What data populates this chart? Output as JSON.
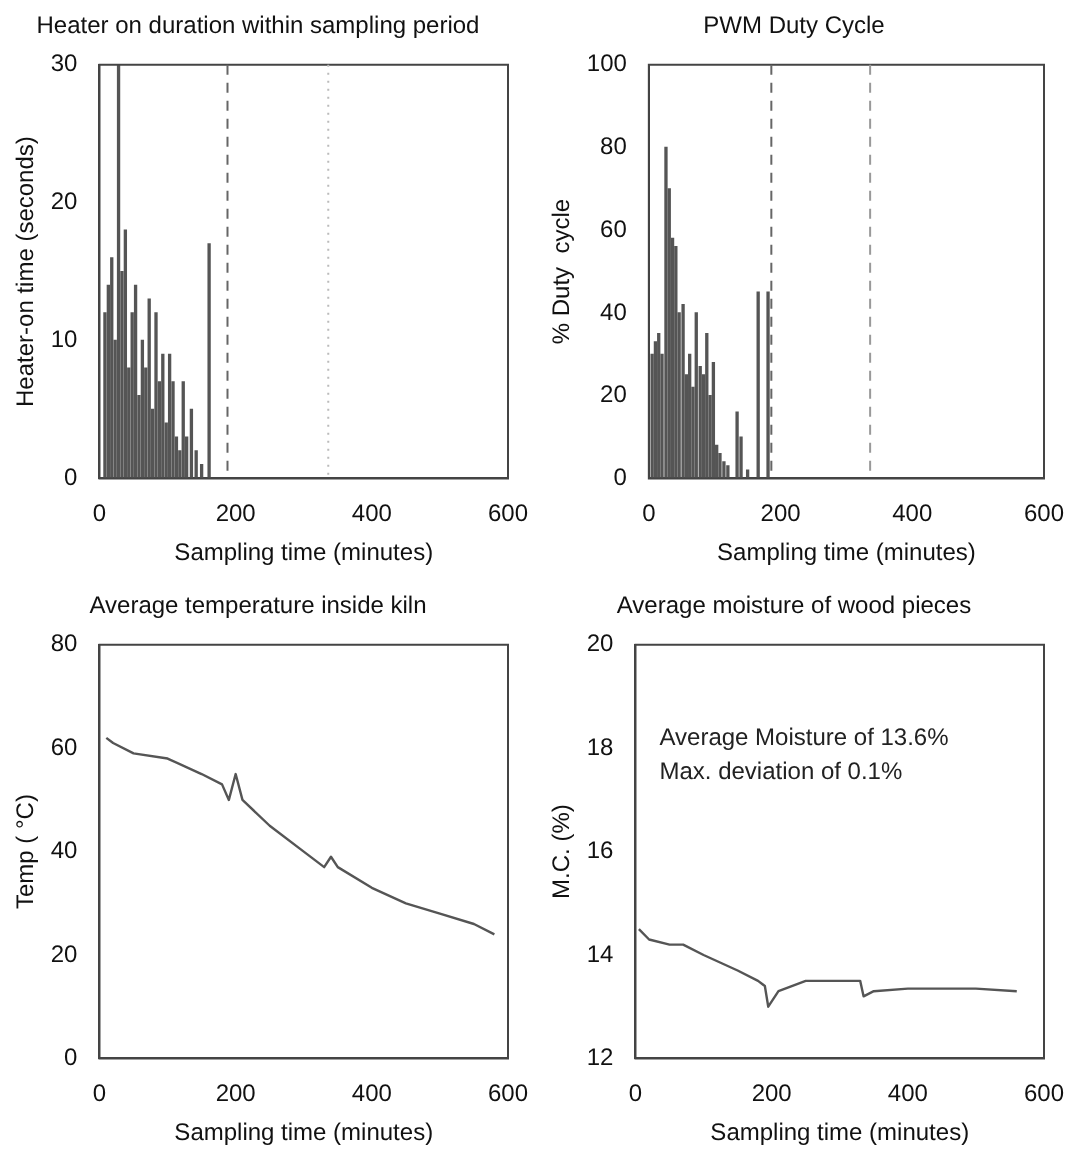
{
  "chart_data": [
    {
      "type": "bar",
      "title": "Heater on duration within sampling period",
      "xlabel": "Sampling time (minutes)",
      "ylabel": "Heater-on time (seconds)",
      "xlim": [
        0,
        600
      ],
      "xticks": [
        0,
        200,
        400,
        600
      ],
      "ylim": [
        0,
        30
      ],
      "yticks": [
        0,
        10,
        20,
        30
      ],
      "grid": false,
      "legend": false,
      "x": [
        8,
        13,
        18,
        23,
        28,
        33,
        38,
        43,
        48,
        53,
        58,
        63,
        68,
        73,
        78,
        83,
        88,
        93,
        98,
        103,
        108,
        113,
        118,
        123,
        128,
        135,
        142,
        150,
        161
      ],
      "series": [
        {
          "color": "#555555",
          "values": [
            12,
            14,
            16,
            10,
            30,
            15,
            18,
            8,
            12,
            14,
            6,
            10,
            8,
            13,
            5,
            12,
            7,
            9,
            4,
            9,
            7,
            3,
            2,
            7,
            3,
            5,
            2,
            1,
            17
          ]
        }
      ],
      "ref_lines": [
        {
          "axis": "x",
          "value": 188,
          "color": "#666666",
          "line_style": "dashed"
        },
        {
          "axis": "x",
          "value": 336,
          "color": "#bbbbbb",
          "line_style": "dotted"
        }
      ]
    },
    {
      "type": "bar",
      "title": "PWM Duty Cycle",
      "xlabel": "Sampling time (minutes)",
      "ylabel": "% Duty  cycle",
      "xlim": [
        0,
        600
      ],
      "xticks": [
        0,
        200,
        400,
        600
      ],
      "ylim": [
        0,
        100
      ],
      "yticks": [
        0,
        20,
        40,
        60,
        80,
        100
      ],
      "grid": false,
      "legend": false,
      "x": [
        5,
        10,
        15,
        20,
        26,
        31,
        36,
        41,
        46,
        52,
        57,
        62,
        67,
        72,
        78,
        83,
        88,
        93,
        98,
        103,
        108,
        114,
        120,
        134,
        140,
        150,
        166,
        181
      ],
      "series": [
        {
          "color": "#555555",
          "values": [
            30,
            33,
            35,
            30,
            80,
            70,
            58,
            56,
            40,
            42,
            25,
            30,
            22,
            40,
            27,
            25,
            35,
            20,
            28,
            8,
            6,
            4,
            3,
            16,
            10,
            2,
            45,
            45
          ]
        }
      ],
      "ref_lines": [
        {
          "axis": "x",
          "value": 186,
          "color": "#666666",
          "line_style": "dashed"
        },
        {
          "axis": "x",
          "value": 336,
          "color": "#999999",
          "line_style": "dashed"
        }
      ]
    },
    {
      "type": "line",
      "title": "Average temperature inside kiln",
      "xlabel": "Sampling time (minutes)",
      "ylabel": "Temp ( °C)",
      "xlim": [
        0,
        600
      ],
      "xticks": [
        0,
        200,
        400,
        600
      ],
      "ylim": [
        0,
        80
      ],
      "yticks": [
        0,
        20,
        40,
        60,
        80
      ],
      "grid": false,
      "legend": false,
      "marker": "none",
      "x": [
        10,
        20,
        50,
        100,
        150,
        180,
        190,
        200,
        210,
        250,
        300,
        330,
        340,
        350,
        400,
        450,
        500,
        550,
        580
      ],
      "series": [
        {
          "color": "#555555",
          "values": [
            62,
            61,
            59,
            58,
            55,
            53,
            50,
            55,
            50,
            45,
            40,
            37,
            39,
            37,
            33,
            30,
            28,
            26,
            24
          ]
        }
      ]
    },
    {
      "type": "line",
      "title": "Average moisture of wood pieces",
      "xlabel": "Sampling time (minutes)",
      "ylabel": "M.C. (%)",
      "xlim": [
        0,
        600
      ],
      "xticks": [
        0,
        200,
        400,
        600
      ],
      "ylim": [
        12,
        20
      ],
      "yticks": [
        12,
        14,
        16,
        18,
        20
      ],
      "grid": false,
      "legend": false,
      "marker": "none",
      "x": [
        5,
        20,
        50,
        70,
        100,
        150,
        180,
        190,
        195,
        210,
        250,
        300,
        330,
        335,
        350,
        400,
        500,
        560
      ],
      "series": [
        {
          "color": "#555555",
          "values": [
            14.5,
            14.3,
            14.2,
            14.2,
            14,
            13.7,
            13.5,
            13.4,
            13,
            13.3,
            13.5,
            13.5,
            13.5,
            13.2,
            13.3,
            13.35,
            13.35,
            13.3
          ]
        }
      ],
      "annotations": [
        "Average Moisture of 13.6%",
        "Max. deviation of 0.1%"
      ]
    }
  ]
}
